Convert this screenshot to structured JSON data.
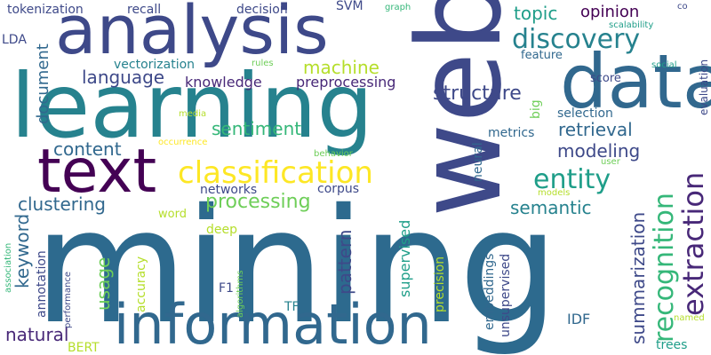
{
  "words": {
    "mining": "mining",
    "web": "web",
    "learning": "learning",
    "analysis": "analysis",
    "information": "information",
    "data": "data",
    "text": "text",
    "classification": "classification",
    "discovery": "discovery",
    "extraction": "extraction",
    "recognition": "recognition",
    "entity": "entity",
    "structure": "structure",
    "processing": "processing",
    "topic": "topic",
    "opinion": "opinion",
    "machine": "machine",
    "language": "language",
    "knowledge": "knowledge",
    "preprocessing": "preprocessing",
    "modeling": "modeling",
    "retrieval": "retrieval",
    "sentiment": "sentiment",
    "content": "content",
    "clustering": "clustering",
    "keyword": "keyword",
    "semantic": "semantic",
    "summarization": "summarization",
    "usage": "usage",
    "natural": "natural",
    "pattern": "pattern",
    "document": "document",
    "vectorization": "vectorization",
    "tokenization": "tokenization",
    "recall": "recall",
    "decision": "decision",
    "SVM": "SVM",
    "graph": "graph",
    "co": "co",
    "scalability": "scalability",
    "LDA": "LDA",
    "rules": "rules",
    "score": "score",
    "feature": "feature",
    "social": "social",
    "evaluation": "evaluation",
    "big": "big",
    "selection": "selection",
    "media": "media",
    "metrics": "metrics",
    "occurrence": "occurrence",
    "behavior": "behavior",
    "user": "user",
    "neural": "neural",
    "supervised": "supervised",
    "networks": "networks",
    "corpus": "corpus",
    "models": "models",
    "word": "word",
    "deep": "deep",
    "accuracy": "accuracy",
    "annotation": "annotation",
    "association": "association",
    "performance": "performance",
    "algorithms": "algorithms",
    "F1": "F1",
    "TF": "TF",
    "precision": "precision",
    "unsupervised": "unsupervised",
    "embeddings": "embeddings",
    "IDF": "IDF",
    "named": "named",
    "trees": "trees",
    "BERT": "BERT"
  },
  "palette": [
    "#440154",
    "#482878",
    "#3e4989",
    "#31688e",
    "#26828e",
    "#1f9e89",
    "#35b779",
    "#6ece58",
    "#b5de2b",
    "#fde725"
  ]
}
